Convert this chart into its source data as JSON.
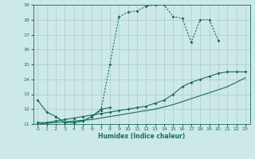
{
  "xlabel": "Humidex (Indice chaleur)",
  "bg_color": "#cce8e8",
  "grid_color": "#aacccc",
  "line_color": "#1a6b5a",
  "xlim": [
    -0.5,
    23.5
  ],
  "ylim": [
    11,
    19
  ],
  "xticks": [
    0,
    1,
    2,
    3,
    4,
    5,
    6,
    7,
    8,
    9,
    10,
    11,
    12,
    13,
    14,
    15,
    16,
    17,
    18,
    19,
    20,
    21,
    22,
    23
  ],
  "yticks": [
    11,
    12,
    13,
    14,
    15,
    16,
    17,
    18,
    19
  ],
  "line1_x": [
    0,
    1,
    2,
    3,
    4,
    5,
    6,
    7,
    8
  ],
  "line1_y": [
    12.6,
    11.8,
    11.5,
    11.1,
    11.1,
    11.2,
    11.5,
    12.0,
    12.1
  ],
  "line2_x": [
    2,
    3,
    4,
    5,
    6,
    7,
    8,
    9,
    10,
    11,
    12,
    13,
    14,
    15,
    16,
    17,
    18,
    19,
    20
  ],
  "line2_y": [
    11.5,
    11.1,
    11.1,
    11.2,
    11.5,
    11.9,
    15.0,
    18.2,
    18.5,
    18.6,
    18.9,
    19.0,
    19.0,
    18.2,
    18.1,
    16.5,
    18.0,
    18.0,
    16.6
  ],
  "line3_x": [
    0,
    1,
    2,
    3,
    4,
    5,
    6,
    7,
    8,
    9,
    10,
    11,
    12,
    13,
    14,
    15,
    16,
    17,
    18,
    19,
    20,
    21,
    22,
    23
  ],
  "line3_y": [
    11.1,
    11.1,
    11.2,
    11.3,
    11.4,
    11.5,
    11.6,
    11.7,
    11.8,
    11.9,
    12.0,
    12.1,
    12.2,
    12.4,
    12.6,
    13.0,
    13.5,
    13.8,
    14.0,
    14.2,
    14.4,
    14.5,
    14.5,
    14.5
  ],
  "line4_x": [
    0,
    1,
    2,
    3,
    4,
    5,
    6,
    7,
    8,
    9,
    10,
    11,
    12,
    13,
    14,
    15,
    16,
    17,
    18,
    19,
    20,
    21,
    22,
    23
  ],
  "line4_y": [
    11.0,
    11.05,
    11.1,
    11.15,
    11.2,
    11.25,
    11.3,
    11.4,
    11.5,
    11.6,
    11.7,
    11.8,
    11.9,
    12.0,
    12.15,
    12.3,
    12.5,
    12.7,
    12.9,
    13.1,
    13.3,
    13.5,
    13.8,
    14.1
  ]
}
